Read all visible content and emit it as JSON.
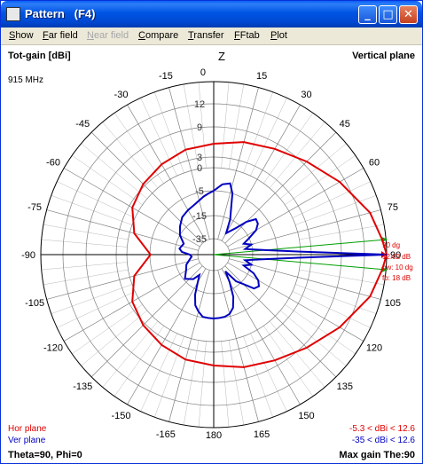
{
  "window": {
    "title": "Pattern   (F4)",
    "minimize_label": "_",
    "maximize_label": "□",
    "close_label": "✕"
  },
  "menu": [
    {
      "first": "S",
      "rest": "how",
      "disabled": false
    },
    {
      "first": "F",
      "rest": "ar field",
      "disabled": false
    },
    {
      "first": "N",
      "rest": "ear field",
      "disabled": true
    },
    {
      "first": "C",
      "rest": "ompare",
      "disabled": false
    },
    {
      "first": "T",
      "rest": "ransfer",
      "disabled": false
    },
    {
      "first": "F",
      "rest": "Ftab",
      "disabled": false
    },
    {
      "first": "P",
      "rest": "lot",
      "disabled": false
    }
  ],
  "plot": {
    "top_left": "Tot-gain [dBi]",
    "frequency": "915 MHz",
    "top_right": "Vertical plane",
    "z_label": "Z",
    "angle_labels": [
      "0",
      "15",
      "30",
      "45",
      "60",
      "75",
      "90",
      "105",
      "120",
      "135",
      "150",
      "165",
      "180",
      "-165",
      "-150",
      "-135",
      "-120",
      "-105",
      "-90",
      "-75",
      "-60",
      "-45",
      "-30",
      "-15"
    ],
    "ring_labels": [
      "12",
      "9",
      "3",
      "0",
      "-5",
      "-15",
      "-35"
    ],
    "markers": {
      "angle": "90 dg",
      "gain": "12.62 dB",
      "beamwidth": "bw: 10 dg",
      "fb": "fb: 18 dB"
    },
    "legend": {
      "hor": "Hor plane",
      "ver": "Ver plane",
      "hor_range": "-5.3 < dBi < 12.6",
      "ver_range": "-35 < dBi < 12.6"
    },
    "bottom_left": "Theta=90, Phi=0",
    "bottom_right": "Max gain The:90",
    "colors": {
      "hor": "#e00000",
      "ver": "#0000c0",
      "beam": "#00a000",
      "grid": "#808080"
    }
  },
  "chart_data": {
    "type": "polar",
    "series": [
      {
        "name": "Hor plane",
        "angles": [
          0,
          15,
          30,
          45,
          60,
          75,
          85,
          90,
          95,
          105,
          120,
          135,
          150,
          165,
          180,
          -165,
          -150,
          -135,
          -120,
          -105,
          -90,
          -75,
          -60,
          -45,
          -30,
          -15
        ],
        "values": [
          6,
          7,
          8,
          9.5,
          11.3,
          12.3,
          12.5,
          12.6,
          12.5,
          12.3,
          11.3,
          9.5,
          8,
          7,
          6,
          5.5,
          4.5,
          3.5,
          2,
          -1,
          -5.3,
          -1,
          2,
          3.5,
          4.5,
          5.5
        ]
      },
      {
        "name": "Ver plane",
        "angles": [
          0,
          7,
          13,
          17,
          20,
          25,
          30,
          40,
          45,
          50,
          55,
          60,
          65,
          70,
          75,
          80,
          85,
          88,
          90,
          92,
          95,
          100,
          105,
          110,
          115,
          120,
          125,
          130,
          135,
          140,
          145,
          150,
          155,
          160,
          165,
          170,
          175,
          180,
          -175,
          -170,
          -165,
          -160,
          -155,
          -150,
          -145,
          -140,
          -130,
          -120,
          -110,
          -100,
          -95,
          -90,
          -85,
          -80,
          -70,
          -60,
          -50,
          -40,
          -30,
          -20,
          -10,
          -5
        ],
        "values": [
          -5,
          -3.5,
          -3,
          -5,
          -10,
          -15,
          -25,
          -18,
          -12,
          -8.5,
          -9,
          -11,
          -15,
          -20,
          -15,
          -20,
          -10,
          0,
          12.6,
          0,
          -10,
          -20,
          -15,
          -20,
          -13,
          -10,
          -8.5,
          -9.5,
          -14,
          -18,
          -30,
          -20,
          -12,
          -8,
          -6,
          -5.3,
          -5.1,
          -5,
          -5.1,
          -5.3,
          -7,
          -9,
          -13,
          -20,
          -25,
          -20,
          -16,
          -20,
          -22,
          -26,
          -28,
          -26,
          -20,
          -18,
          -20,
          -15,
          -13,
          -11,
          -10,
          -9,
          -7,
          -6
        ]
      }
    ],
    "rings": [
      12.6,
      12,
      9,
      3,
      0,
      -5,
      -15,
      -35
    ],
    "angle_step": 15
  }
}
